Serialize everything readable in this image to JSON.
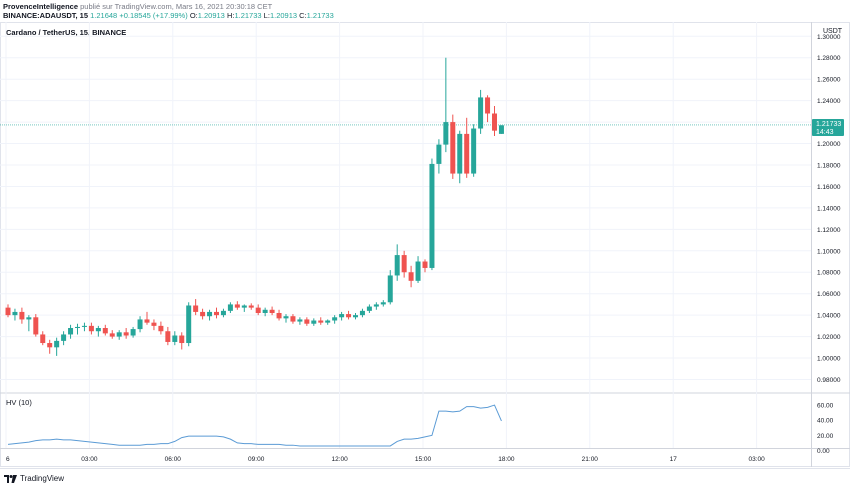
{
  "header": {
    "author": "ProvenceIntelligence",
    "published": "publié sur TradingView.com, Mars 16, 2021 20:30:18 CET",
    "symbol_line": "BINANCE:ADAUSDT, 15",
    "last": "1.21648",
    "change": "+0.18545 (+17.99%)",
    "o_label": "O:",
    "o_value": "1.20913",
    "h_label": "H:",
    "h_value": "1.21733",
    "l_label": "L:",
    "l_value": "1.20913",
    "c_label": "C:",
    "c_value": "1.21733"
  },
  "chart_title": "Cardano / TetherUS, 15, BINANCE",
  "footer": {
    "brand": "TradingView"
  },
  "colors": {
    "up": "#26a69a",
    "down": "#ef5350",
    "hv": "#5b9bd5",
    "price_line": "#26a69a"
  },
  "chart_data": [
    {
      "type": "candlestick",
      "title": "Cardano / TetherUS, 15, BINANCE",
      "y_unit": "USDT",
      "ylim": [
        0.973,
        1.304
      ],
      "y_ticks": [
        1.3,
        1.28,
        1.26,
        1.24,
        1.22,
        1.2,
        1.18,
        1.16,
        1.14,
        1.12,
        1.1,
        1.08,
        1.06,
        1.04,
        1.02,
        1.0,
        0.98
      ],
      "y_tick_labels": [
        "1.30000",
        "1.28000",
        "1.26000",
        "1.24000",
        "1.22000",
        "1.20000",
        "1.18000",
        "1.16000",
        "1.14000",
        "1.12000",
        "1.10000",
        "1.08000",
        "1.06000",
        "1.04000",
        "1.02000",
        "1.00000",
        "0.98000"
      ],
      "x_tick_labels": [
        "6",
        "03:00",
        "06:00",
        "09:00",
        "12:00",
        "15:00",
        "18:00",
        "21:00",
        "17",
        "03:00"
      ],
      "x_tick_hours": [
        0,
        3,
        6,
        9,
        12,
        15,
        18,
        21,
        24,
        27
      ],
      "x_range_hours": [
        0,
        30.3
      ],
      "interval_minutes": 15,
      "current_price": {
        "label": "1.21733",
        "countdown": "14:43",
        "value": 1.21733
      },
      "grid": true,
      "candles": [
        {
          "o": 1.047,
          "h": 1.05,
          "l": 1.038,
          "c": 1.04
        },
        {
          "o": 1.04,
          "h": 1.046,
          "l": 1.035,
          "c": 1.043
        },
        {
          "o": 1.043,
          "h": 1.047,
          "l": 1.032,
          "c": 1.036
        },
        {
          "o": 1.036,
          "h": 1.04,
          "l": 1.025,
          "c": 1.038
        },
        {
          "o": 1.038,
          "h": 1.041,
          "l": 1.02,
          "c": 1.022
        },
        {
          "o": 1.022,
          "h": 1.025,
          "l": 1.012,
          "c": 1.014
        },
        {
          "o": 1.014,
          "h": 1.017,
          "l": 1.004,
          "c": 1.01
        },
        {
          "o": 1.01,
          "h": 1.019,
          "l": 1.002,
          "c": 1.016
        },
        {
          "o": 1.016,
          "h": 1.025,
          "l": 1.012,
          "c": 1.022
        },
        {
          "o": 1.022,
          "h": 1.031,
          "l": 1.018,
          "c": 1.028
        },
        {
          "o": 1.028,
          "h": 1.032,
          "l": 1.022,
          "c": 1.029
        },
        {
          "o": 1.029,
          "h": 1.033,
          "l": 1.025,
          "c": 1.03
        },
        {
          "o": 1.03,
          "h": 1.033,
          "l": 1.022,
          "c": 1.025
        },
        {
          "o": 1.025,
          "h": 1.03,
          "l": 1.02,
          "c": 1.028
        },
        {
          "o": 1.028,
          "h": 1.031,
          "l": 1.021,
          "c": 1.023
        },
        {
          "o": 1.023,
          "h": 1.026,
          "l": 1.018,
          "c": 1.02
        },
        {
          "o": 1.02,
          "h": 1.026,
          "l": 1.017,
          "c": 1.024
        },
        {
          "o": 1.024,
          "h": 1.028,
          "l": 1.018,
          "c": 1.021
        },
        {
          "o": 1.021,
          "h": 1.029,
          "l": 1.019,
          "c": 1.027
        },
        {
          "o": 1.027,
          "h": 1.039,
          "l": 1.024,
          "c": 1.036
        },
        {
          "o": 1.036,
          "h": 1.043,
          "l": 1.031,
          "c": 1.033
        },
        {
          "o": 1.033,
          "h": 1.036,
          "l": 1.026,
          "c": 1.03
        },
        {
          "o": 1.03,
          "h": 1.034,
          "l": 1.022,
          "c": 1.025
        },
        {
          "o": 1.025,
          "h": 1.029,
          "l": 1.012,
          "c": 1.015
        },
        {
          "o": 1.015,
          "h": 1.025,
          "l": 1.012,
          "c": 1.021
        },
        {
          "o": 1.021,
          "h": 1.024,
          "l": 1.008,
          "c": 1.014
        },
        {
          "o": 1.014,
          "h": 1.052,
          "l": 1.011,
          "c": 1.049
        },
        {
          "o": 1.049,
          "h": 1.055,
          "l": 1.04,
          "c": 1.043
        },
        {
          "o": 1.043,
          "h": 1.046,
          "l": 1.036,
          "c": 1.039
        },
        {
          "o": 1.039,
          "h": 1.045,
          "l": 1.035,
          "c": 1.043
        },
        {
          "o": 1.043,
          "h": 1.047,
          "l": 1.037,
          "c": 1.04
        },
        {
          "o": 1.04,
          "h": 1.046,
          "l": 1.038,
          "c": 1.044
        },
        {
          "o": 1.044,
          "h": 1.052,
          "l": 1.042,
          "c": 1.05
        },
        {
          "o": 1.05,
          "h": 1.053,
          "l": 1.045,
          "c": 1.047
        },
        {
          "o": 1.047,
          "h": 1.05,
          "l": 1.043,
          "c": 1.049
        },
        {
          "o": 1.049,
          "h": 1.051,
          "l": 1.045,
          "c": 1.047
        },
        {
          "o": 1.047,
          "h": 1.05,
          "l": 1.04,
          "c": 1.042
        },
        {
          "o": 1.042,
          "h": 1.047,
          "l": 1.039,
          "c": 1.045
        },
        {
          "o": 1.045,
          "h": 1.048,
          "l": 1.04,
          "c": 1.042
        },
        {
          "o": 1.042,
          "h": 1.045,
          "l": 1.035,
          "c": 1.037
        },
        {
          "o": 1.037,
          "h": 1.041,
          "l": 1.033,
          "c": 1.039
        },
        {
          "o": 1.039,
          "h": 1.041,
          "l": 1.032,
          "c": 1.034
        },
        {
          "o": 1.034,
          "h": 1.038,
          "l": 1.031,
          "c": 1.036
        },
        {
          "o": 1.036,
          "h": 1.038,
          "l": 1.03,
          "c": 1.032
        },
        {
          "o": 1.032,
          "h": 1.037,
          "l": 1.03,
          "c": 1.035
        },
        {
          "o": 1.035,
          "h": 1.038,
          "l": 1.031,
          "c": 1.033
        },
        {
          "o": 1.033,
          "h": 1.036,
          "l": 1.031,
          "c": 1.035
        },
        {
          "o": 1.035,
          "h": 1.04,
          "l": 1.032,
          "c": 1.038
        },
        {
          "o": 1.038,
          "h": 1.043,
          "l": 1.035,
          "c": 1.041
        },
        {
          "o": 1.041,
          "h": 1.044,
          "l": 1.036,
          "c": 1.038
        },
        {
          "o": 1.038,
          "h": 1.042,
          "l": 1.036,
          "c": 1.04
        },
        {
          "o": 1.04,
          "h": 1.046,
          "l": 1.038,
          "c": 1.044
        },
        {
          "o": 1.044,
          "h": 1.05,
          "l": 1.042,
          "c": 1.048
        },
        {
          "o": 1.048,
          "h": 1.052,
          "l": 1.045,
          "c": 1.05
        },
        {
          "o": 1.05,
          "h": 1.054,
          "l": 1.048,
          "c": 1.052
        },
        {
          "o": 1.052,
          "h": 1.082,
          "l": 1.05,
          "c": 1.077
        },
        {
          "o": 1.077,
          "h": 1.106,
          "l": 1.072,
          "c": 1.096
        },
        {
          "o": 1.096,
          "h": 1.1,
          "l": 1.075,
          "c": 1.08
        },
        {
          "o": 1.08,
          "h": 1.086,
          "l": 1.066,
          "c": 1.072
        },
        {
          "o": 1.072,
          "h": 1.095,
          "l": 1.07,
          "c": 1.09
        },
        {
          "o": 1.09,
          "h": 1.092,
          "l": 1.08,
          "c": 1.084
        },
        {
          "o": 1.084,
          "h": 1.186,
          "l": 1.082,
          "c": 1.181
        },
        {
          "o": 1.181,
          "h": 1.204,
          "l": 1.172,
          "c": 1.199
        },
        {
          "o": 1.199,
          "h": 1.28,
          "l": 1.192,
          "c": 1.22
        },
        {
          "o": 1.22,
          "h": 1.227,
          "l": 1.167,
          "c": 1.172
        },
        {
          "o": 1.172,
          "h": 1.212,
          "l": 1.163,
          "c": 1.209
        },
        {
          "o": 1.209,
          "h": 1.224,
          "l": 1.168,
          "c": 1.172
        },
        {
          "o": 1.172,
          "h": 1.218,
          "l": 1.169,
          "c": 1.214
        },
        {
          "o": 1.214,
          "h": 1.25,
          "l": 1.209,
          "c": 1.243
        },
        {
          "o": 1.243,
          "h": 1.245,
          "l": 1.22,
          "c": 1.228
        },
        {
          "o": 1.228,
          "h": 1.235,
          "l": 1.207,
          "c": 1.212
        },
        {
          "o": 1.209,
          "h": 1.217,
          "l": 1.209,
          "c": 1.217
        }
      ]
    },
    {
      "type": "line",
      "title": "HV (10)",
      "ylim": [
        -2,
        72
      ],
      "y_ticks": [
        60,
        40,
        20,
        0
      ],
      "y_tick_labels": [
        "60.00",
        "40.00",
        "20.00",
        "0.00"
      ],
      "values": [
        8,
        9,
        10,
        11,
        13,
        14,
        14,
        15,
        14,
        14,
        13,
        12,
        11,
        10,
        9,
        8,
        7,
        7,
        7,
        7,
        8,
        8,
        9,
        9,
        12,
        17,
        19,
        19,
        19,
        19,
        19,
        18,
        15,
        10,
        9,
        9,
        8,
        8,
        8,
        8,
        7,
        7,
        6,
        6,
        6,
        6,
        6,
        6,
        6,
        6,
        6,
        6,
        6,
        6,
        6,
        6,
        12,
        15,
        15,
        16,
        18,
        20,
        52,
        52,
        51,
        52,
        58,
        58,
        56,
        57,
        60,
        39
      ]
    }
  ]
}
